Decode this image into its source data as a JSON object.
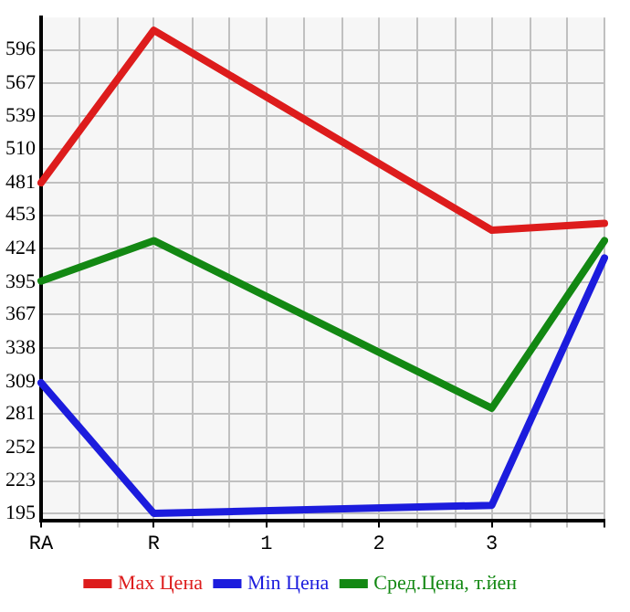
{
  "chart_data": {
    "type": "line",
    "categories": [
      "RA",
      "R",
      "1",
      "2",
      "3",
      null
    ],
    "series": [
      {
        "name": "Max Цена",
        "color": "#dd1c1c",
        "values": [
          481,
          613,
          null,
          null,
          440,
          446
        ]
      },
      {
        "name": "Min Цена",
        "color": "#1c1cdd",
        "values": [
          308,
          195,
          null,
          null,
          202,
          416
        ]
      },
      {
        "name": "Сред.Цена, т.йен",
        "color": "#138813",
        "values": [
          396,
          431,
          null,
          null,
          286,
          431
        ]
      }
    ],
    "ylim": [
      189,
      624
    ],
    "yticks": [
      195,
      223,
      252,
      281,
      309,
      338,
      367,
      395,
      424,
      453,
      481,
      510,
      539,
      567,
      596
    ],
    "grid": true,
    "legend": "bottom",
    "marker": "none",
    "line_style": "solid"
  }
}
